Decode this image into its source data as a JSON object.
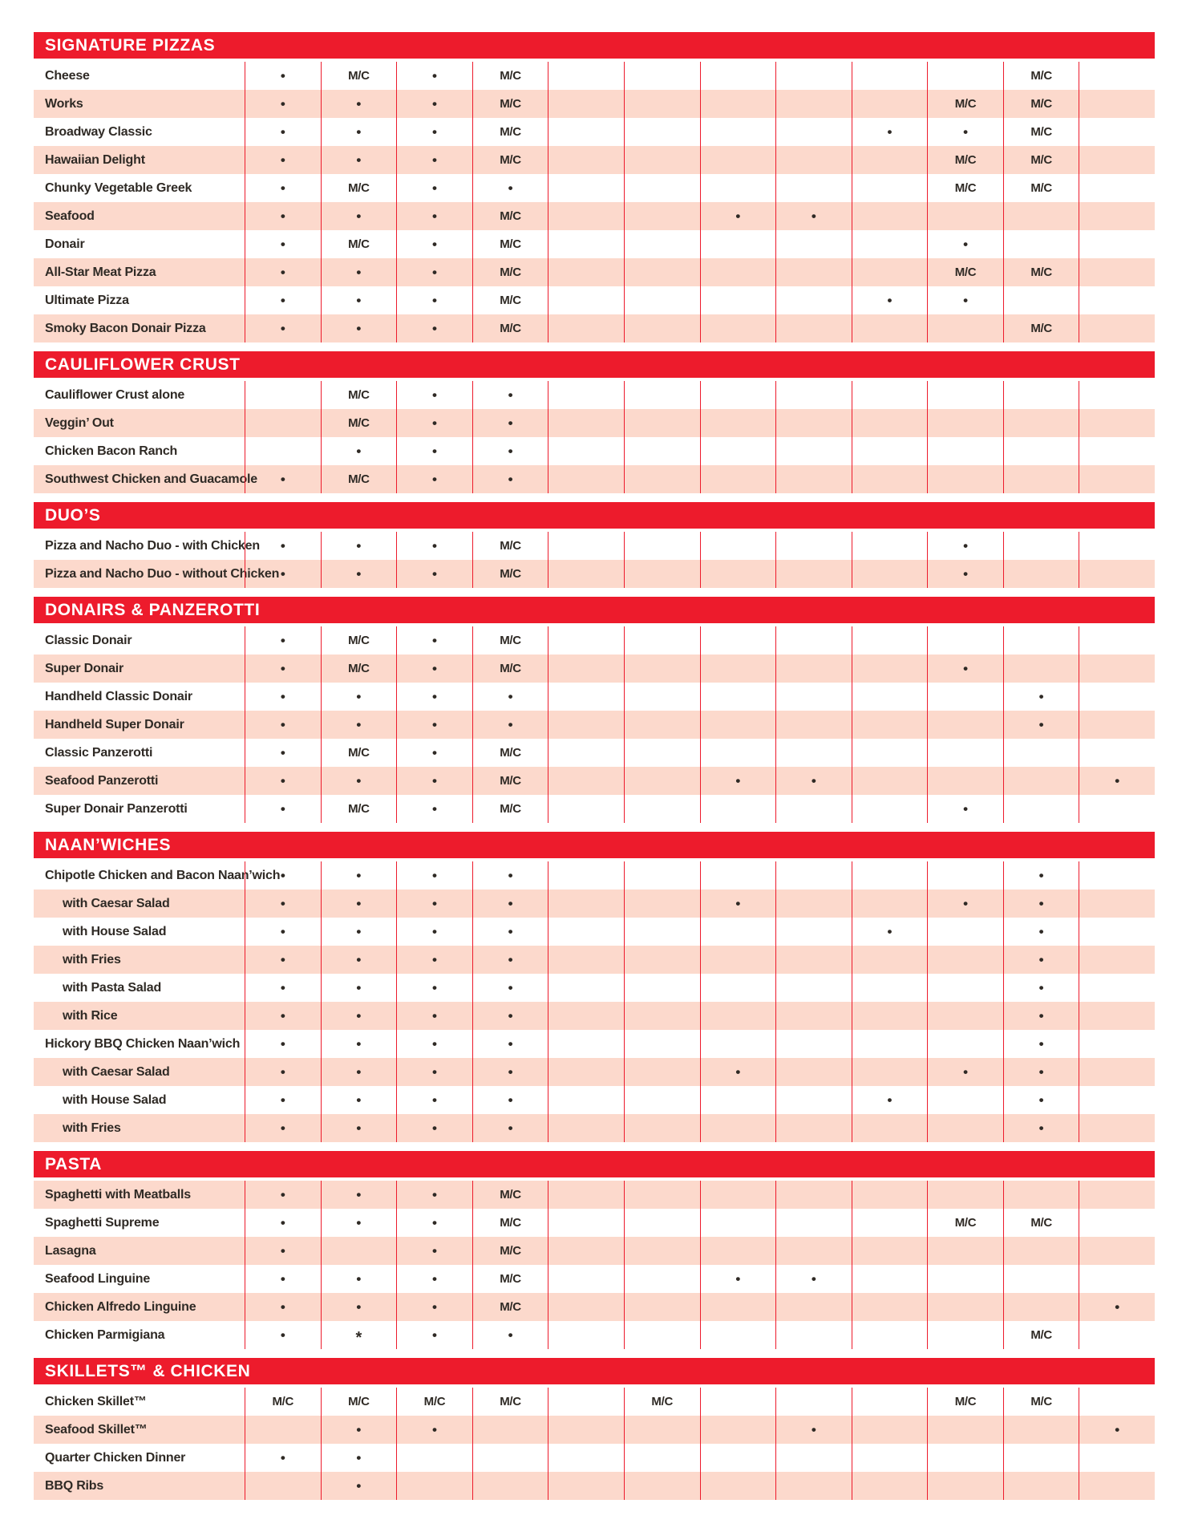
{
  "colors": {
    "red": "#ed1b2c",
    "pink": "#fcd9cc",
    "text": "#2f2a25",
    "background": "#ffffff"
  },
  "legend": {
    "dot": "•",
    "mc": "M/C",
    "star": "*"
  },
  "table": {
    "num_data_columns": 12
  },
  "sections": [
    {
      "title": "SIGNATURE PIZZAS",
      "first_row_shade": "white",
      "rows": [
        {
          "label": "Cheese",
          "indent": false,
          "marks": {
            "1": "dot",
            "2": "mc",
            "3": "dot",
            "4": "mc",
            "11": "mc"
          }
        },
        {
          "label": "Works",
          "indent": false,
          "marks": {
            "1": "dot",
            "2": "dot",
            "3": "dot",
            "4": "mc",
            "10": "mc",
            "11": "mc"
          }
        },
        {
          "label": "Broadway Classic",
          "indent": false,
          "marks": {
            "1": "dot",
            "2": "dot",
            "3": "dot",
            "4": "mc",
            "9": "dot",
            "10": "dot",
            "11": "mc"
          }
        },
        {
          "label": "Hawaiian Delight",
          "indent": false,
          "marks": {
            "1": "dot",
            "2": "dot",
            "3": "dot",
            "4": "mc",
            "10": "mc",
            "11": "mc"
          }
        },
        {
          "label": "Chunky Vegetable Greek",
          "indent": false,
          "marks": {
            "1": "dot",
            "2": "mc",
            "3": "dot",
            "4": "dot",
            "10": "mc",
            "11": "mc"
          }
        },
        {
          "label": "Seafood",
          "indent": false,
          "marks": {
            "1": "dot",
            "2": "dot",
            "3": "dot",
            "4": "mc",
            "7": "dot",
            "8": "dot"
          }
        },
        {
          "label": "Donair",
          "indent": false,
          "marks": {
            "1": "dot",
            "2": "mc",
            "3": "dot",
            "4": "mc",
            "10": "dot"
          }
        },
        {
          "label": "All-Star Meat Pizza",
          "indent": false,
          "marks": {
            "1": "dot",
            "2": "dot",
            "3": "dot",
            "4": "mc",
            "10": "mc",
            "11": "mc"
          }
        },
        {
          "label": "Ultimate Pizza",
          "indent": false,
          "marks": {
            "1": "dot",
            "2": "dot",
            "3": "dot",
            "4": "mc",
            "9": "dot",
            "10": "dot"
          }
        },
        {
          "label": "Smoky Bacon Donair Pizza",
          "indent": false,
          "marks": {
            "1": "dot",
            "2": "dot",
            "3": "dot",
            "4": "mc",
            "11": "mc"
          }
        }
      ]
    },
    {
      "title": "CAULIFLOWER CRUST",
      "first_row_shade": "white",
      "rows": [
        {
          "label": "Cauliflower Crust alone",
          "indent": false,
          "marks": {
            "2": "mc",
            "3": "dot",
            "4": "dot"
          }
        },
        {
          "label": "Veggin’ Out",
          "indent": false,
          "marks": {
            "2": "mc",
            "3": "dot",
            "4": "dot"
          }
        },
        {
          "label": "Chicken Bacon Ranch",
          "indent": false,
          "marks": {
            "2": "dot",
            "3": "dot",
            "4": "dot"
          }
        },
        {
          "label": "Southwest Chicken and Guacamole",
          "indent": false,
          "marks": {
            "1": "dot",
            "2": "mc",
            "3": "dot",
            "4": "dot"
          }
        }
      ]
    },
    {
      "title": "DUO’S",
      "first_row_shade": "white",
      "rows": [
        {
          "label": "Pizza and Nacho Duo - with Chicken",
          "indent": false,
          "marks": {
            "1": "dot",
            "2": "dot",
            "3": "dot",
            "4": "mc",
            "10": "dot"
          }
        },
        {
          "label": "Pizza and Nacho Duo - without Chicken",
          "indent": false,
          "marks": {
            "1": "dot",
            "2": "dot",
            "3": "dot",
            "4": "mc",
            "10": "dot"
          }
        }
      ]
    },
    {
      "title": "DONAIRS & PANZEROTTI",
      "first_row_shade": "white",
      "rows": [
        {
          "label": "Classic Donair",
          "indent": false,
          "marks": {
            "1": "dot",
            "2": "mc",
            "3": "dot",
            "4": "mc"
          }
        },
        {
          "label": "Super Donair",
          "indent": false,
          "marks": {
            "1": "dot",
            "2": "mc",
            "3": "dot",
            "4": "mc",
            "10": "dot"
          }
        },
        {
          "label": "Handheld Classic Donair",
          "indent": false,
          "marks": {
            "1": "dot",
            "2": "dot",
            "3": "dot",
            "4": "dot",
            "11": "dot"
          }
        },
        {
          "label": "Handheld Super Donair",
          "indent": false,
          "marks": {
            "1": "dot",
            "2": "dot",
            "3": "dot",
            "4": "dot",
            "11": "dot"
          }
        },
        {
          "label": "Classic Panzerotti",
          "indent": false,
          "marks": {
            "1": "dot",
            "2": "mc",
            "3": "dot",
            "4": "mc"
          }
        },
        {
          "label": "Seafood Panzerotti",
          "indent": false,
          "marks": {
            "1": "dot",
            "2": "dot",
            "3": "dot",
            "4": "mc",
            "7": "dot",
            "8": "dot",
            "12": "dot"
          }
        },
        {
          "label": "Super Donair Panzerotti",
          "indent": false,
          "marks": {
            "1": "dot",
            "2": "mc",
            "3": "dot",
            "4": "mc",
            "10": "dot"
          }
        }
      ]
    },
    {
      "title": "NAAN’WICHES",
      "first_row_shade": "white",
      "rows": [
        {
          "label": "Chipotle Chicken and Bacon Naan’wich",
          "indent": false,
          "marks": {
            "1": "dot",
            "2": "dot",
            "3": "dot",
            "4": "dot",
            "11": "dot"
          }
        },
        {
          "label": "with Caesar Salad",
          "indent": true,
          "marks": {
            "1": "dot",
            "2": "dot",
            "3": "dot",
            "4": "dot",
            "7": "dot",
            "10": "dot",
            "11": "dot"
          }
        },
        {
          "label": "with House Salad",
          "indent": true,
          "marks": {
            "1": "dot",
            "2": "dot",
            "3": "dot",
            "4": "dot",
            "9": "dot",
            "11": "dot"
          }
        },
        {
          "label": "with Fries",
          "indent": true,
          "marks": {
            "1": "dot",
            "2": "dot",
            "3": "dot",
            "4": "dot",
            "11": "dot"
          }
        },
        {
          "label": "with Pasta Salad",
          "indent": true,
          "marks": {
            "1": "dot",
            "2": "dot",
            "3": "dot",
            "4": "dot",
            "11": "dot"
          }
        },
        {
          "label": "with Rice",
          "indent": true,
          "marks": {
            "1": "dot",
            "2": "dot",
            "3": "dot",
            "4": "dot",
            "11": "dot"
          }
        },
        {
          "label": "Hickory BBQ Chicken Naan’wich",
          "indent": false,
          "marks": {
            "1": "dot",
            "2": "dot",
            "3": "dot",
            "4": "dot",
            "11": "dot"
          }
        },
        {
          "label": "with Caesar Salad",
          "indent": true,
          "marks": {
            "1": "dot",
            "2": "dot",
            "3": "dot",
            "4": "dot",
            "7": "dot",
            "10": "dot",
            "11": "dot"
          }
        },
        {
          "label": "with House Salad",
          "indent": true,
          "marks": {
            "1": "dot",
            "2": "dot",
            "3": "dot",
            "4": "dot",
            "9": "dot",
            "11": "dot"
          }
        },
        {
          "label": "with Fries",
          "indent": true,
          "marks": {
            "1": "dot",
            "2": "dot",
            "3": "dot",
            "4": "dot",
            "11": "dot"
          }
        }
      ]
    },
    {
      "title": "PASTA",
      "first_row_shade": "pink",
      "rows": [
        {
          "label": "Spaghetti with Meatballs",
          "indent": false,
          "marks": {
            "1": "dot",
            "2": "dot",
            "3": "dot",
            "4": "mc"
          }
        },
        {
          "label": "Spaghetti Supreme",
          "indent": false,
          "marks": {
            "1": "dot",
            "2": "dot",
            "3": "dot",
            "4": "mc",
            "10": "mc",
            "11": "mc"
          }
        },
        {
          "label": "Lasagna",
          "indent": false,
          "marks": {
            "1": "dot",
            "3": "dot",
            "4": "mc"
          }
        },
        {
          "label": "Seafood Linguine",
          "indent": false,
          "marks": {
            "1": "dot",
            "2": "dot",
            "3": "dot",
            "4": "mc",
            "7": "dot",
            "8": "dot"
          }
        },
        {
          "label": "Chicken Alfredo Linguine",
          "indent": false,
          "marks": {
            "1": "dot",
            "2": "dot",
            "3": "dot",
            "4": "mc",
            "12": "dot"
          }
        },
        {
          "label": "Chicken Parmigiana",
          "indent": false,
          "marks": {
            "1": "dot",
            "2": "star",
            "3": "dot",
            "4": "dot",
            "11": "mc"
          }
        }
      ]
    },
    {
      "title": "SKILLETS™ & CHICKEN",
      "first_row_shade": "white",
      "rows": [
        {
          "label": "Chicken Skillet™",
          "indent": false,
          "marks": {
            "1": "mc",
            "2": "mc",
            "3": "mc",
            "4": "mc",
            "6": "mc",
            "10": "mc",
            "11": "mc"
          }
        },
        {
          "label": "Seafood Skillet™",
          "indent": false,
          "marks": {
            "2": "dot",
            "3": "dot",
            "8": "dot",
            "12": "dot"
          }
        },
        {
          "label": "Quarter Chicken Dinner",
          "indent": false,
          "marks": {
            "1": "dot",
            "2": "dot"
          }
        },
        {
          "label": "BBQ Ribs",
          "indent": false,
          "marks": {
            "2": "dot"
          }
        }
      ]
    }
  ]
}
